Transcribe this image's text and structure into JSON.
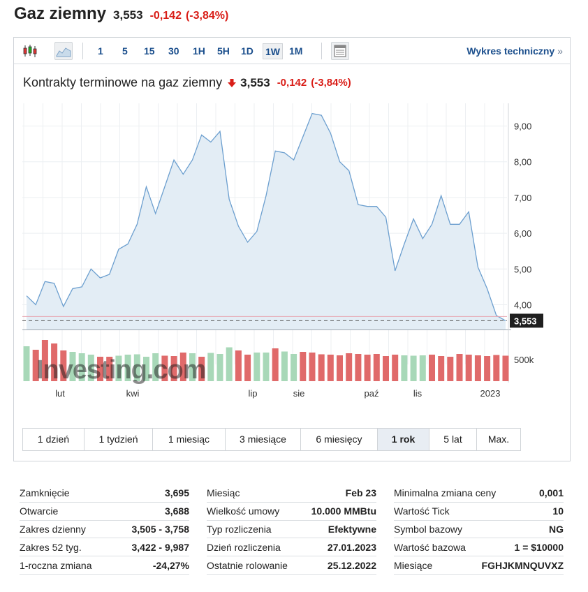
{
  "header": {
    "title": "Gaz ziemny",
    "price": "3,553",
    "change": "-0,142",
    "change_pct": "(-3,84%)"
  },
  "toolbar": {
    "intervals": [
      "1",
      "5",
      "15",
      "30",
      "1H",
      "5H",
      "1D",
      "1W",
      "1M"
    ],
    "active_interval": "1W",
    "technical_link": "Wykres techniczny",
    "icons": [
      "candlestick-chart-icon",
      "area-chart-icon",
      "table-view-icon"
    ]
  },
  "chart": {
    "title": "Kontrakty terminowe na gaz ziemny",
    "price": "3,553",
    "change": "-0,142",
    "change_pct": "(-3,84%)",
    "watermark": "Investing.com",
    "line_color": "#6c9fcf",
    "fill_color": "#e3edf5",
    "up_color": "#a8d8b8",
    "down_color": "#e06a6a"
  },
  "chart_data": {
    "type": "area",
    "y_ticks": [
      "4,00",
      "5,00",
      "6,00",
      "7,00",
      "8,00",
      "9,00"
    ],
    "ylim": [
      3.3,
      9.55
    ],
    "x_ticks": [
      "lut",
      "kwi",
      "lip",
      "sie",
      "paź",
      "lis",
      "2023"
    ],
    "current_label": "3,553",
    "current_value": 3.553,
    "volume_label": "500k",
    "values": [
      4.25,
      4.0,
      4.65,
      4.6,
      3.95,
      4.45,
      4.5,
      5.0,
      4.75,
      4.85,
      5.55,
      5.7,
      6.25,
      7.3,
      6.55,
      7.3,
      8.05,
      7.65,
      8.05,
      8.75,
      8.55,
      8.85,
      6.95,
      6.2,
      5.75,
      6.05,
      7.05,
      8.3,
      8.25,
      8.05,
      8.7,
      9.35,
      9.3,
      8.8,
      8.0,
      7.75,
      6.8,
      6.75,
      6.75,
      6.45,
      4.95,
      5.7,
      6.4,
      5.85,
      6.25,
      7.05,
      6.25,
      6.25,
      6.6,
      5.05,
      4.45,
      3.7,
      3.553
    ],
    "volume": [
      100,
      90,
      118,
      108,
      88,
      84,
      80,
      76,
      70,
      70,
      73,
      76,
      77,
      70,
      80,
      73,
      72,
      82,
      80,
      70,
      81,
      78,
      97,
      88,
      76,
      82,
      82,
      94,
      85,
      78,
      84,
      82,
      77,
      76,
      74,
      80,
      78,
      76,
      78,
      72,
      76,
      74,
      73,
      74,
      76,
      72,
      70,
      78,
      76,
      74,
      72,
      75,
      73
    ],
    "volume_dir": [
      "up",
      "down",
      "down",
      "down",
      "down",
      "up",
      "up",
      "up",
      "down",
      "down",
      "up",
      "up",
      "up",
      "up",
      "up",
      "down",
      "down",
      "down",
      "up",
      "down",
      "up",
      "up",
      "up",
      "down",
      "down",
      "up",
      "up",
      "down",
      "up",
      "up",
      "down",
      "down",
      "down",
      "down",
      "down",
      "down",
      "down",
      "down",
      "down",
      "down",
      "down",
      "up",
      "up",
      "up",
      "down",
      "down",
      "down",
      "down",
      "down",
      "down",
      "down",
      "down",
      "down"
    ]
  },
  "range_tabs": [
    {
      "label": "1 dzień",
      "w": 88
    },
    {
      "label": "1 tydzień",
      "w": 98
    },
    {
      "label": "1 miesiąc",
      "w": 104
    },
    {
      "label": "3 miesiące",
      "w": 108
    },
    {
      "label": "6 miesięcy",
      "w": 110
    },
    {
      "label": "1 rok",
      "w": 74
    },
    {
      "label": "5 lat",
      "w": 68
    },
    {
      "label": "Max.",
      "w": 62
    }
  ],
  "active_range": "1 rok",
  "stats": {
    "col1": [
      {
        "label": "Zamknięcie",
        "value": "3,695"
      },
      {
        "label": "Otwarcie",
        "value": "3,688"
      },
      {
        "label": "Zakres dzienny",
        "value": "3,505 - 3,758"
      },
      {
        "label": "Zakres 52 tyg.",
        "value": "3,422 - 9,987"
      },
      {
        "label": "1-roczna zmiana",
        "value": "-24,27%"
      }
    ],
    "col2": [
      {
        "label": "Miesiąc",
        "value": "Feb 23"
      },
      {
        "label": "Wielkość umowy",
        "value": "10.000 MMBtu"
      },
      {
        "label": "Typ rozliczenia",
        "value": "Efektywne"
      },
      {
        "label": "Dzień rozliczenia",
        "value": "27.01.2023"
      },
      {
        "label": "Ostatnie rolowanie",
        "value": "25.12.2022"
      }
    ],
    "col3": [
      {
        "label": "Minimalna zmiana ceny",
        "value": "0,001"
      },
      {
        "label": "Wartość Tick",
        "value": "10"
      },
      {
        "label": "Symbol bazowy",
        "value": "NG"
      },
      {
        "label": "Wartość bazowa",
        "value": "1 = $10000"
      },
      {
        "label": "Miesiące",
        "value": "FGHJKMNQUVXZ"
      }
    ]
  }
}
